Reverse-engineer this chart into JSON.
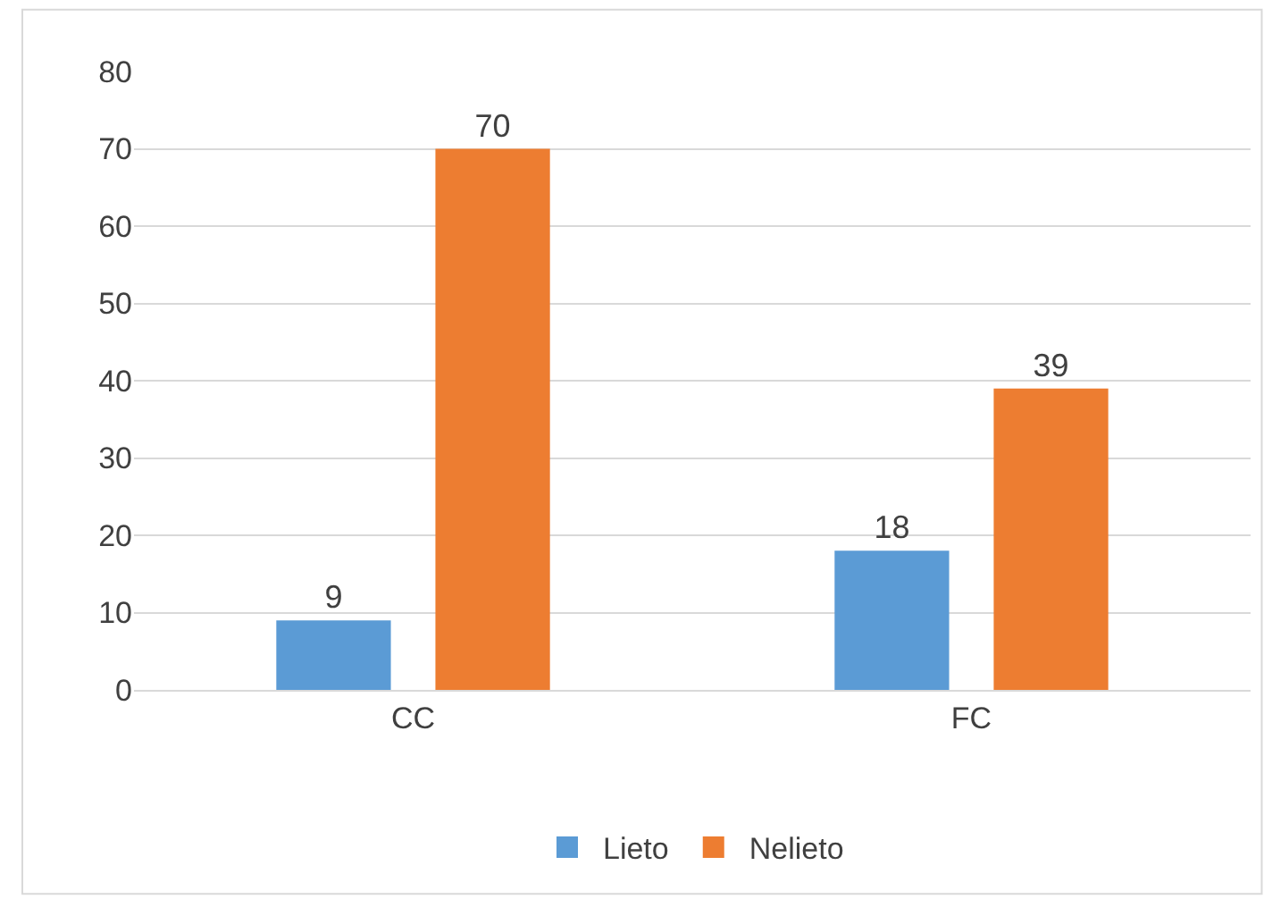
{
  "chart_data": {
    "type": "bar",
    "categories": [
      "CC",
      "FC"
    ],
    "series": [
      {
        "name": "Lieto",
        "color": "#5b9bd5",
        "values": [
          9,
          18
        ]
      },
      {
        "name": "Nelieto",
        "color": "#ed7d31",
        "values": [
          70,
          39
        ]
      }
    ],
    "ylim": [
      0,
      80
    ],
    "yticks": [
      0,
      10,
      20,
      30,
      40,
      50,
      60,
      70,
      80
    ],
    "grid": "y",
    "legend": "bottom",
    "data_labels": true
  }
}
